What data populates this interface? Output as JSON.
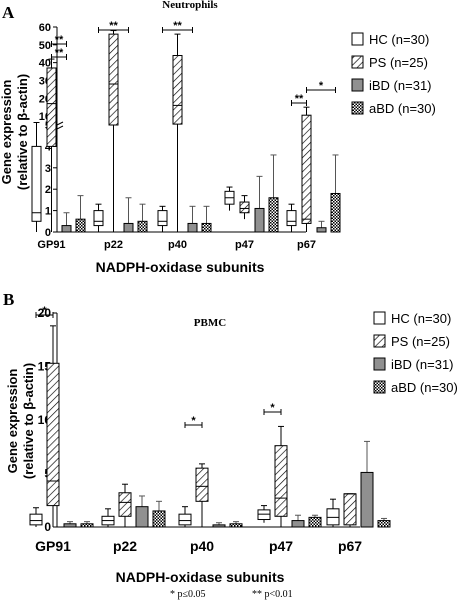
{
  "colors": {
    "HC": "#ffffff",
    "PS": "hatch",
    "iBD": "#909090",
    "aBD": "checker",
    "stroke": "#000000"
  },
  "footnote": {
    "p1": "* p≤0.05",
    "p2": "** p<0.01"
  },
  "chart_data": [
    {
      "type": "bar",
      "panel_label": "A",
      "title": "Neutrophils",
      "xlabel": "NADPH-oxidase subunits",
      "ylabel_line1": "Gene expression",
      "ylabel_line2": "(relative to β-actin)",
      "categories": [
        "GP91",
        "p22",
        "p40",
        "p47",
        "p67"
      ],
      "yscale": "broken: linear 0-5 (bottom), 5-60 compressed (top)",
      "ylim": [
        0,
        60
      ],
      "ytick_values": [
        0,
        1,
        2,
        3,
        4,
        5,
        10,
        20,
        30,
        40,
        50,
        60
      ],
      "yticks": [
        "0",
        "1",
        "2",
        "3",
        "4",
        "5",
        "10",
        "20",
        "30",
        "40",
        "50",
        "60"
      ],
      "grid": false,
      "legend_position": "right",
      "series": [
        {
          "name": "HC (n=30)",
          "kind": "box",
          "boxes": [
            {
              "q1": 0.5,
              "median": 0.9,
              "q3": 4.0,
              "whisker_high": 6.4,
              "whisker_low": 0
            },
            {
              "q1": 0.3,
              "median": 0.5,
              "q3": 1.0,
              "whisker_high": 1.3,
              "whisker_low": 0
            },
            {
              "q1": 0.3,
              "median": 0.5,
              "q3": 1.0,
              "whisker_high": 1.2,
              "whisker_low": 0
            },
            {
              "q1": 1.3,
              "median": 1.6,
              "q3": 1.9,
              "whisker_high": 2.1,
              "whisker_low": 1.0
            },
            {
              "q1": 0.3,
              "median": 0.5,
              "q3": 1.0,
              "whisker_high": 1.3,
              "whisker_low": 0
            }
          ]
        },
        {
          "name": "PS (n=25)",
          "kind": "box",
          "boxes": [
            {
              "q1": 4.0,
              "median": 17,
              "q3": 37,
              "whisker_high": 42,
              "whisker_low": 0
            },
            {
              "q1": 5.0,
              "median": 28,
              "q3": 56,
              "whisker_high": 58,
              "whisker_low": 0
            },
            {
              "q1": 5.5,
              "median": 16,
              "q3": 44,
              "whisker_high": 56,
              "whisker_low": 0
            },
            {
              "q1": 0.9,
              "median": 1.1,
              "q3": 1.4,
              "whisker_high": 1.7,
              "whisker_low": 0.6
            },
            {
              "q1": 0.4,
              "median": 0.6,
              "q3": 10.5,
              "whisker_high": 15,
              "whisker_low": 0
            }
          ]
        },
        {
          "name": "iBD (n=31)",
          "kind": "bar",
          "values": [
            0.3,
            0.4,
            0.4,
            1.1,
            0.2
          ],
          "errors": [
            0.6,
            1.2,
            0.8,
            1.5,
            0.3
          ]
        },
        {
          "name": "aBD (n=30)",
          "kind": "bar",
          "values": [
            0.6,
            0.5,
            0.4,
            1.6,
            1.8
          ],
          "errors": [
            1.1,
            0.8,
            0.8,
            2.0,
            1.8
          ]
        }
      ],
      "significance": [
        {
          "category": "GP91",
          "label": "**"
        },
        {
          "category": "GP91",
          "label": "**"
        },
        {
          "category": "p22",
          "label": "**"
        },
        {
          "category": "p40",
          "label": "**"
        },
        {
          "category": "p67",
          "label": "**"
        },
        {
          "category": "p67",
          "label": "*"
        }
      ]
    },
    {
      "type": "bar",
      "panel_label": "B",
      "title": "PBMC",
      "xlabel": "NADPH-oxidase subunits",
      "ylabel_line1": "Gene expression",
      "ylabel_line2": "(relative to β-actin)",
      "categories": [
        "GP91",
        "p22",
        "p40",
        "p47",
        "p67"
      ],
      "ylim": [
        0,
        20
      ],
      "yticks": [
        "0",
        "5",
        "10",
        "15",
        "20"
      ],
      "grid": false,
      "legend_position": "right",
      "series": [
        {
          "name": "HC (n=30)",
          "kind": "box",
          "boxes": [
            {
              "q1": 0.2,
              "median": 0.6,
              "q3": 1.2,
              "whisker_high": 1.8,
              "whisker_low": 0
            },
            {
              "q1": 0.2,
              "median": 0.6,
              "q3": 1.0,
              "whisker_high": 1.7,
              "whisker_low": 0
            },
            {
              "q1": 0.2,
              "median": 0.6,
              "q3": 1.2,
              "whisker_high": 1.9,
              "whisker_low": 0
            },
            {
              "q1": 0.7,
              "median": 1.2,
              "q3": 1.6,
              "whisker_high": 2.0,
              "whisker_low": 0.4
            },
            {
              "q1": 0.2,
              "median": 0.9,
              "q3": 1.7,
              "whisker_high": 2.6,
              "whisker_low": 0
            }
          ]
        },
        {
          "name": "PS (n=25)",
          "kind": "box",
          "boxes": [
            {
              "q1": 2.0,
              "median": 4.3,
              "q3": 15.3,
              "whisker_high": 18.8,
              "whisker_low": 0
            },
            {
              "q1": 1.0,
              "median": 2.3,
              "q3": 3.2,
              "whisker_high": 4.0,
              "whisker_low": 0
            },
            {
              "q1": 2.4,
              "median": 3.8,
              "q3": 5.5,
              "whisker_high": 5.9,
              "whisker_low": 0
            },
            {
              "q1": 1.0,
              "median": 2.7,
              "q3": 7.6,
              "whisker_high": 9.4,
              "whisker_low": 0
            },
            {
              "q1": 0.2,
              "median": 3.1,
              "q3": 3.1,
              "whisker_high": 3.1,
              "whisker_low": 0
            }
          ]
        },
        {
          "name": "iBD (n=31)",
          "kind": "bar",
          "values": [
            0.3,
            1.9,
            0.2,
            0.6,
            5.1
          ],
          "errors": [
            0.2,
            1.0,
            0.2,
            0.5,
            2.9
          ]
        },
        {
          "name": "aBD (n=30)",
          "kind": "bar",
          "values": [
            0.3,
            1.5,
            0.3,
            0.9,
            0.6
          ],
          "errors": [
            0.2,
            0.9,
            0.2,
            0.2,
            0.2
          ]
        }
      ],
      "significance": [
        {
          "category": "GP91",
          "label": "*"
        },
        {
          "category": "p40",
          "label": "*"
        },
        {
          "category": "p47",
          "label": "*"
        }
      ]
    }
  ]
}
